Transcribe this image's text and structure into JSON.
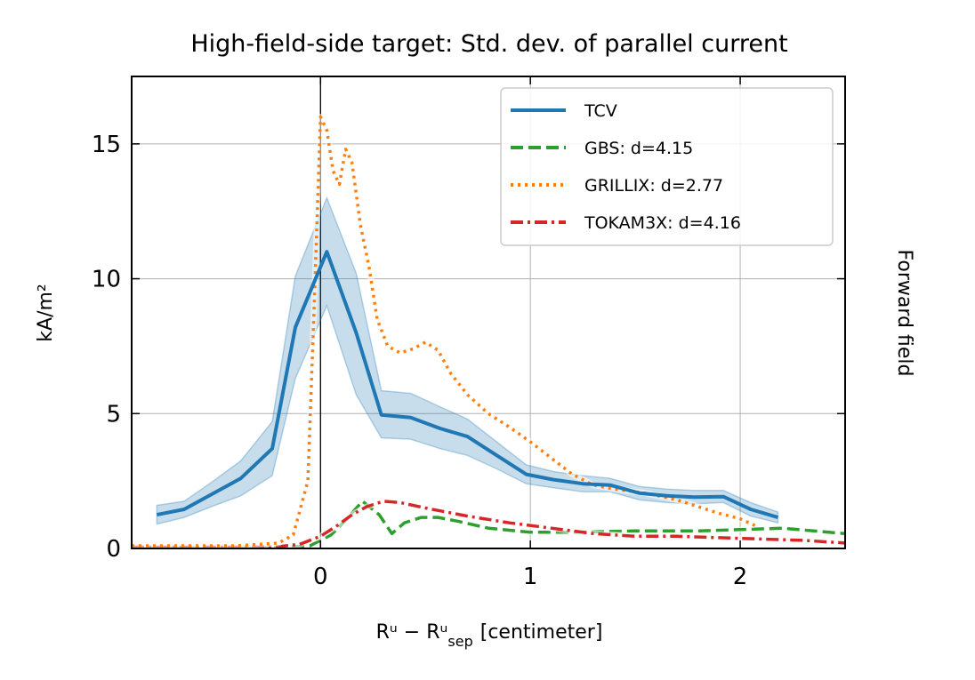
{
  "chart_data": {
    "type": "line",
    "title": "High-field-side target: Std. dev. of parallel current",
    "xlabel": "Rᵘ − Rᵘ",
    "xlabel_sub": "sep",
    "xlabel_unit": "[centimeter]",
    "ylabel": "kA/m²",
    "side_label": "Forward field",
    "xlim": [
      -0.9,
      2.5
    ],
    "ylim": [
      0,
      17.5
    ],
    "xticks": [
      0,
      1,
      2
    ],
    "yticks": [
      0,
      5,
      10,
      15
    ],
    "xtick_labels": [
      "0",
      "1",
      "2"
    ],
    "ytick_labels": [
      "0",
      "5",
      "10",
      "15"
    ],
    "grid": true,
    "separatrix_x": 0,
    "legend_position": "top-right",
    "legend": [
      "TCV",
      "GBS: d=4.15",
      "GRILLIX: d=2.77",
      "TOKAM3X: d=4.16"
    ],
    "series": [
      {
        "name": "TCV",
        "color": "#1f77b4",
        "style": "solid",
        "x": [
          -0.78,
          -0.65,
          -0.52,
          -0.38,
          -0.23,
          -0.12,
          0.03,
          0.17,
          0.29,
          0.43,
          0.57,
          0.7,
          0.84,
          0.98,
          1.11,
          1.25,
          1.38,
          1.52,
          1.65,
          1.78,
          1.92,
          2.05,
          2.18
        ],
        "y": [
          1.25,
          1.45,
          2.0,
          2.6,
          3.7,
          8.2,
          11.0,
          8.0,
          4.95,
          4.85,
          4.45,
          4.15,
          3.45,
          2.75,
          2.55,
          2.4,
          2.35,
          2.05,
          1.95,
          1.9,
          1.92,
          1.45,
          1.15
        ],
        "band_upper": [
          1.6,
          1.75,
          2.45,
          3.25,
          4.7,
          10.1,
          13.0,
          10.2,
          5.85,
          5.75,
          5.25,
          4.8,
          3.95,
          3.1,
          2.85,
          2.7,
          2.6,
          2.3,
          2.2,
          2.15,
          2.15,
          1.7,
          1.35
        ],
        "band_lower": [
          0.9,
          1.15,
          1.55,
          1.95,
          2.7,
          6.3,
          9.0,
          5.7,
          4.1,
          4.05,
          3.7,
          3.45,
          2.95,
          2.4,
          2.25,
          2.1,
          2.1,
          1.8,
          1.7,
          1.65,
          1.7,
          1.2,
          0.95
        ]
      },
      {
        "name": "GBS: d=4.15",
        "color": "#2ca02c",
        "style": "dashed",
        "x": [
          -0.9,
          -0.3,
          -0.15,
          -0.05,
          0.05,
          0.12,
          0.2,
          0.28,
          0.34,
          0.4,
          0.48,
          0.56,
          0.66,
          0.8,
          1.0,
          1.2,
          1.5,
          1.8,
          2.0,
          2.2,
          2.35,
          2.5
        ],
        "y": [
          0.05,
          0.05,
          0.05,
          0.1,
          0.5,
          1.05,
          1.75,
          1.25,
          0.55,
          0.95,
          1.15,
          1.15,
          1.0,
          0.75,
          0.6,
          0.6,
          0.65,
          0.65,
          0.7,
          0.75,
          0.65,
          0.55
        ]
      },
      {
        "name": "GRILLIX: d=2.77",
        "color": "#ff7f0e",
        "style": "dotted",
        "x": [
          -0.9,
          -0.4,
          -0.2,
          -0.13,
          -0.06,
          -0.03,
          0.0,
          0.03,
          0.06,
          0.09,
          0.12,
          0.15,
          0.19,
          0.23,
          0.27,
          0.32,
          0.38,
          0.44,
          0.5,
          0.56,
          0.62,
          0.7,
          0.8,
          0.9,
          1.0,
          1.1,
          1.2,
          1.3,
          1.4,
          1.55,
          1.7,
          1.8,
          1.9,
          2.0,
          2.07
        ],
        "y": [
          0.1,
          0.1,
          0.2,
          0.5,
          2.5,
          9.0,
          16.0,
          15.5,
          14.0,
          13.5,
          14.8,
          14.3,
          12.0,
          10.5,
          8.5,
          7.5,
          7.25,
          7.4,
          7.65,
          7.35,
          6.5,
          5.7,
          5.0,
          4.5,
          3.95,
          3.35,
          2.75,
          2.35,
          2.2,
          2.05,
          1.8,
          1.55,
          1.3,
          1.1,
          0.85
        ]
      },
      {
        "name": "TOKAM3X: d=4.16",
        "color": "#d62728",
        "style": "dashdot",
        "x": [
          -0.9,
          -0.3,
          -0.2,
          -0.1,
          0.0,
          0.08,
          0.15,
          0.22,
          0.3,
          0.38,
          0.5,
          0.7,
          0.9,
          1.1,
          1.3,
          1.5,
          1.7,
          1.9,
          2.1,
          2.3,
          2.5
        ],
        "y": [
          0.05,
          0.05,
          0.07,
          0.15,
          0.45,
          0.85,
          1.25,
          1.55,
          1.75,
          1.7,
          1.5,
          1.2,
          0.95,
          0.75,
          0.55,
          0.45,
          0.45,
          0.4,
          0.35,
          0.3,
          0.2
        ]
      }
    ]
  }
}
